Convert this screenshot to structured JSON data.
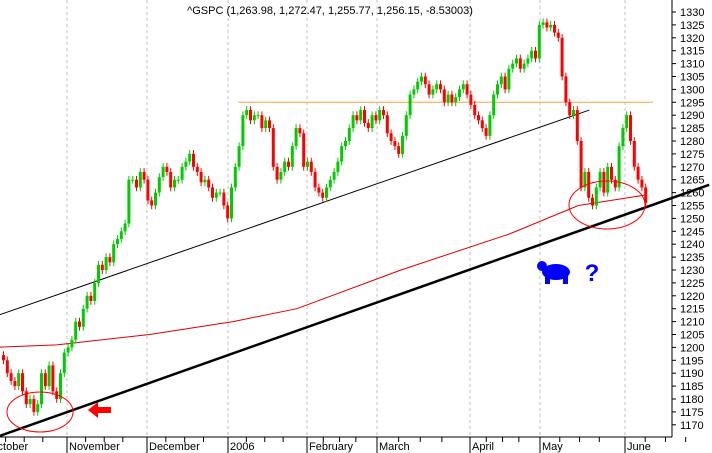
{
  "chart_data": {
    "type": "candlestick",
    "title": "^GSPC (1,263.98, 1,272.47, 1,255.77, 1,256.15, -8.53003)",
    "ylim": [
      1170,
      1330
    ],
    "y_ticks": [
      1170,
      1175,
      1180,
      1185,
      1190,
      1195,
      1200,
      1205,
      1210,
      1215,
      1220,
      1225,
      1230,
      1235,
      1240,
      1245,
      1250,
      1255,
      1260,
      1265,
      1270,
      1275,
      1280,
      1285,
      1290,
      1295,
      1300,
      1305,
      1310,
      1315,
      1320,
      1325,
      1330
    ],
    "x_ticks": [
      {
        "label": "October",
        "date": "2005-10-01"
      },
      {
        "label": "November",
        "date": "2005-11-01"
      },
      {
        "label": "December",
        "date": "2005-12-01"
      },
      {
        "label": "2006",
        "date": "2006-01-01"
      },
      {
        "label": "February",
        "date": "2006-02-01"
      },
      {
        "label": "March",
        "date": "2006-03-01"
      },
      {
        "label": "April",
        "date": "2006-04-01"
      },
      {
        "label": "May",
        "date": "2006-05-01"
      },
      {
        "label": "June",
        "date": "2006-06-01"
      }
    ],
    "grid": "vertical dashed at months",
    "colors": {
      "up": "#00cc00",
      "down": "#ff0000",
      "ma": "#e00000",
      "resistance": "#ffa040",
      "trend": "#000000",
      "annotation": "#ff0000",
      "icon": "#0000ff"
    },
    "closes": [
      1195,
      1190,
      1187,
      1185,
      1190,
      1183,
      1178,
      1180,
      1175,
      1178,
      1190,
      1185,
      1193,
      1183,
      1180,
      1190,
      1198,
      1200,
      1203,
      1210,
      1208,
      1215,
      1220,
      1218,
      1225,
      1232,
      1230,
      1235,
      1233,
      1240,
      1242,
      1245,
      1248,
      1265,
      1265,
      1262,
      1268,
      1265,
      1257,
      1255,
      1260,
      1266,
      1270,
      1268,
      1262,
      1265,
      1265,
      1270,
      1272,
      1275,
      1270,
      1268,
      1264,
      1265,
      1262,
      1258,
      1260,
      1260,
      1255,
      1250,
      1262,
      1270,
      1278,
      1290,
      1292,
      1288,
      1290,
      1290,
      1285,
      1288,
      1285,
      1270,
      1265,
      1268,
      1272,
      1270,
      1278,
      1285,
      1283,
      1270,
      1272,
      1268,
      1262,
      1260,
      1258,
      1262,
      1265,
      1268,
      1272,
      1278,
      1280,
      1285,
      1290,
      1288,
      1292,
      1287,
      1285,
      1290,
      1288,
      1292,
      1290,
      1283,
      1280,
      1278,
      1275,
      1282,
      1290,
      1298,
      1300,
      1303,
      1305,
      1302,
      1298,
      1300,
      1302,
      1300,
      1295,
      1298,
      1295,
      1297,
      1300,
      1302,
      1298,
      1294,
      1290,
      1288,
      1285,
      1282,
      1290,
      1298,
      1302,
      1305,
      1300,
      1308,
      1310,
      1312,
      1308,
      1310,
      1312,
      1315,
      1312,
      1325,
      1326,
      1324,
      1325,
      1322,
      1320,
      1305,
      1295,
      1290,
      1292,
      1280,
      1262,
      1268,
      1258,
      1255,
      1262,
      1268,
      1260,
      1270,
      1265,
      1262,
      1278,
      1285,
      1290,
      1280,
      1270,
      1265,
      1262,
      1256
    ],
    "overlays": {
      "moving_average": [
        {
          "date": "2005-10-04",
          "price": 1200
        },
        {
          "date": "2005-10-28",
          "price": 1201
        },
        {
          "date": "2005-12-02",
          "price": 1205
        },
        {
          "date": "2006-01-03",
          "price": 1210
        },
        {
          "date": "2006-01-28",
          "price": 1215
        },
        {
          "date": "2006-03-09",
          "price": 1230
        },
        {
          "date": "2006-04-18",
          "price": 1244
        },
        {
          "date": "2006-05-15",
          "price": 1255
        },
        {
          "date": "2006-06-08",
          "price": 1259
        }
      ],
      "resistance": {
        "price": 1295,
        "from": "2006-01-05",
        "to": "2006-06-11"
      },
      "upper_trend": [
        {
          "date": "2005-10-04",
          "price": 1212
        },
        {
          "date": "2006-05-19",
          "price": 1292
        }
      ],
      "support_trend": [
        {
          "date": "2005-10-04",
          "price": 1165
        },
        {
          "date": "2006-07-01",
          "price": 1263
        }
      ]
    },
    "annotations": [
      "red-ellipse-october-low",
      "red-left-arrow",
      "red-ellipse-june",
      "bear-icon",
      "question-mark"
    ]
  },
  "annotation_text": {
    "question": "?"
  }
}
